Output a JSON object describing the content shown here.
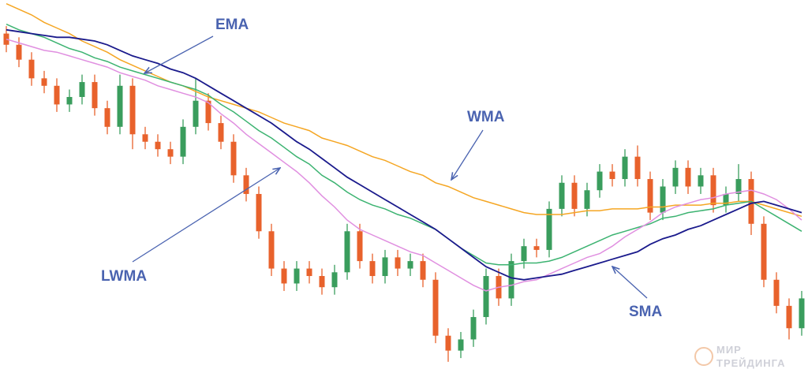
{
  "chart_data": {
    "type": "candlestick",
    "open": [
      91,
      88,
      84,
      79,
      77,
      72,
      74,
      78,
      71,
      66,
      77,
      64,
      62,
      60,
      58,
      66,
      73,
      67,
      62,
      53,
      48,
      38,
      28,
      24,
      28,
      26,
      23,
      27,
      38,
      30,
      26,
      31,
      28,
      30,
      25,
      10,
      6,
      9,
      15,
      26,
      20,
      30,
      34,
      33,
      44,
      51,
      44,
      49,
      54,
      52,
      58,
      52,
      43,
      50,
      55,
      50,
      53,
      45,
      48,
      52,
      40,
      25,
      18,
      12
    ],
    "high": [
      93,
      90,
      86,
      81,
      79,
      76,
      80,
      80,
      73,
      80,
      79,
      66,
      64,
      62,
      68,
      79,
      75,
      69,
      64,
      55,
      50,
      40,
      30,
      30,
      30,
      28,
      29,
      40,
      40,
      32,
      33,
      33,
      32,
      32,
      27,
      12,
      11,
      17,
      28,
      28,
      32,
      36,
      36,
      46,
      53,
      53,
      51,
      56,
      56,
      60,
      61,
      54,
      52,
      57,
      57,
      55,
      55,
      50,
      56,
      54,
      42,
      27,
      20,
      22
    ],
    "low": [
      86,
      82,
      77,
      75,
      70,
      70,
      72,
      69,
      64,
      64,
      60,
      60,
      58,
      56,
      56,
      64,
      65,
      60,
      51,
      46,
      36,
      26,
      22,
      22,
      24,
      21,
      21,
      25,
      28,
      24,
      24,
      26,
      26,
      23,
      8,
      3,
      4,
      7,
      13,
      18,
      18,
      28,
      31,
      31,
      42,
      42,
      42,
      47,
      50,
      50,
      50,
      41,
      41,
      48,
      48,
      48,
      43,
      43,
      46,
      37,
      23,
      16,
      9,
      10
    ],
    "close": [
      88,
      84,
      79,
      77,
      72,
      74,
      78,
      71,
      66,
      77,
      64,
      62,
      60,
      58,
      66,
      73,
      67,
      62,
      53,
      48,
      38,
      28,
      24,
      28,
      26,
      23,
      27,
      38,
      30,
      26,
      31,
      28,
      30,
      25,
      10,
      6,
      9,
      15,
      26,
      20,
      30,
      34,
      33,
      44,
      51,
      44,
      49,
      54,
      52,
      58,
      52,
      43,
      50,
      55,
      50,
      53,
      45,
      48,
      52,
      40,
      25,
      18,
      12,
      20
    ],
    "up_color": "#3a9d5d",
    "down_color": "#e8622c",
    "ylim": [
      0,
      100
    ],
    "series": [
      {
        "name": "WMA",
        "color": "#f5a623",
        "values": [
          99,
          97.5,
          96,
          94,
          92.5,
          91,
          89,
          87.5,
          86,
          84,
          82.5,
          81,
          79.5,
          78,
          77,
          75.5,
          74,
          73,
          72,
          71,
          70,
          68.5,
          67,
          66,
          65,
          63,
          62,
          61,
          59.5,
          58,
          57,
          55.5,
          54,
          53,
          51,
          50,
          48.5,
          47,
          46,
          45,
          44,
          43,
          42.5,
          42.5,
          42.5,
          43,
          43.5,
          43.5,
          44,
          44,
          44,
          44.5,
          44.5,
          45,
          45,
          45,
          45.5,
          45.5,
          46,
          46,
          45,
          44,
          43,
          42
        ]
      },
      {
        "name": "EMA",
        "color": "#3cb371",
        "values": [
          93.5,
          92,
          91,
          90,
          88.5,
          87,
          86,
          84.5,
          83.5,
          82,
          81,
          80,
          79,
          78,
          77,
          76,
          74.5,
          72,
          70,
          67.5,
          65,
          63,
          60.5,
          58,
          56,
          53,
          51,
          48.5,
          46.5,
          45,
          44,
          42.5,
          41.5,
          40,
          38.5,
          36,
          33.5,
          31.5,
          29.5,
          29,
          29,
          29.5,
          29.5,
          30,
          31,
          32.5,
          34,
          35.5,
          37,
          38,
          39,
          40,
          41.5,
          42,
          43,
          43.5,
          44,
          45,
          45.5,
          46,
          44,
          42,
          40,
          38
        ]
      },
      {
        "name": "LWMA",
        "color": "#e08fe0",
        "values": [
          89.5,
          88.5,
          87.5,
          86.5,
          86,
          85,
          84,
          83,
          82,
          80.5,
          79.5,
          78.5,
          77,
          76,
          75,
          74,
          72.5,
          69.5,
          67,
          64,
          61.5,
          59,
          56.5,
          54,
          51,
          47.5,
          44.5,
          41,
          38.5,
          37,
          35.5,
          34,
          32.5,
          31.5,
          29.5,
          27.5,
          25.5,
          23.5,
          22,
          23,
          23.5,
          24.5,
          25,
          26.5,
          28,
          29.5,
          31,
          32,
          34,
          36.5,
          38.5,
          40.5,
          43,
          44.5,
          45.5,
          46.5,
          47,
          48,
          48.5,
          49,
          48,
          46.5,
          44,
          41
        ]
      },
      {
        "name": "SMA",
        "color": "#1a1a8c",
        "values": [
          92,
          91.5,
          91,
          90.5,
          90,
          90,
          89.5,
          89,
          88,
          86.5,
          85,
          84,
          83,
          81.5,
          80.5,
          79,
          77,
          75,
          73,
          71,
          69,
          67,
          64.5,
          62,
          60,
          57.5,
          55,
          52.5,
          50.5,
          48.5,
          46.5,
          44.5,
          42.5,
          40.5,
          38.5,
          36,
          33.5,
          31,
          28.5,
          27,
          25.5,
          25,
          25.5,
          26,
          26.5,
          27.5,
          28.5,
          29.5,
          30.5,
          31.5,
          32.5,
          34.5,
          36,
          37,
          38.5,
          39.5,
          41,
          42.5,
          44,
          45.5,
          46,
          45,
          44,
          43
        ]
      }
    ],
    "watermark": [
      "МИР",
      "ТРЕЙДИНГА"
    ]
  }
}
